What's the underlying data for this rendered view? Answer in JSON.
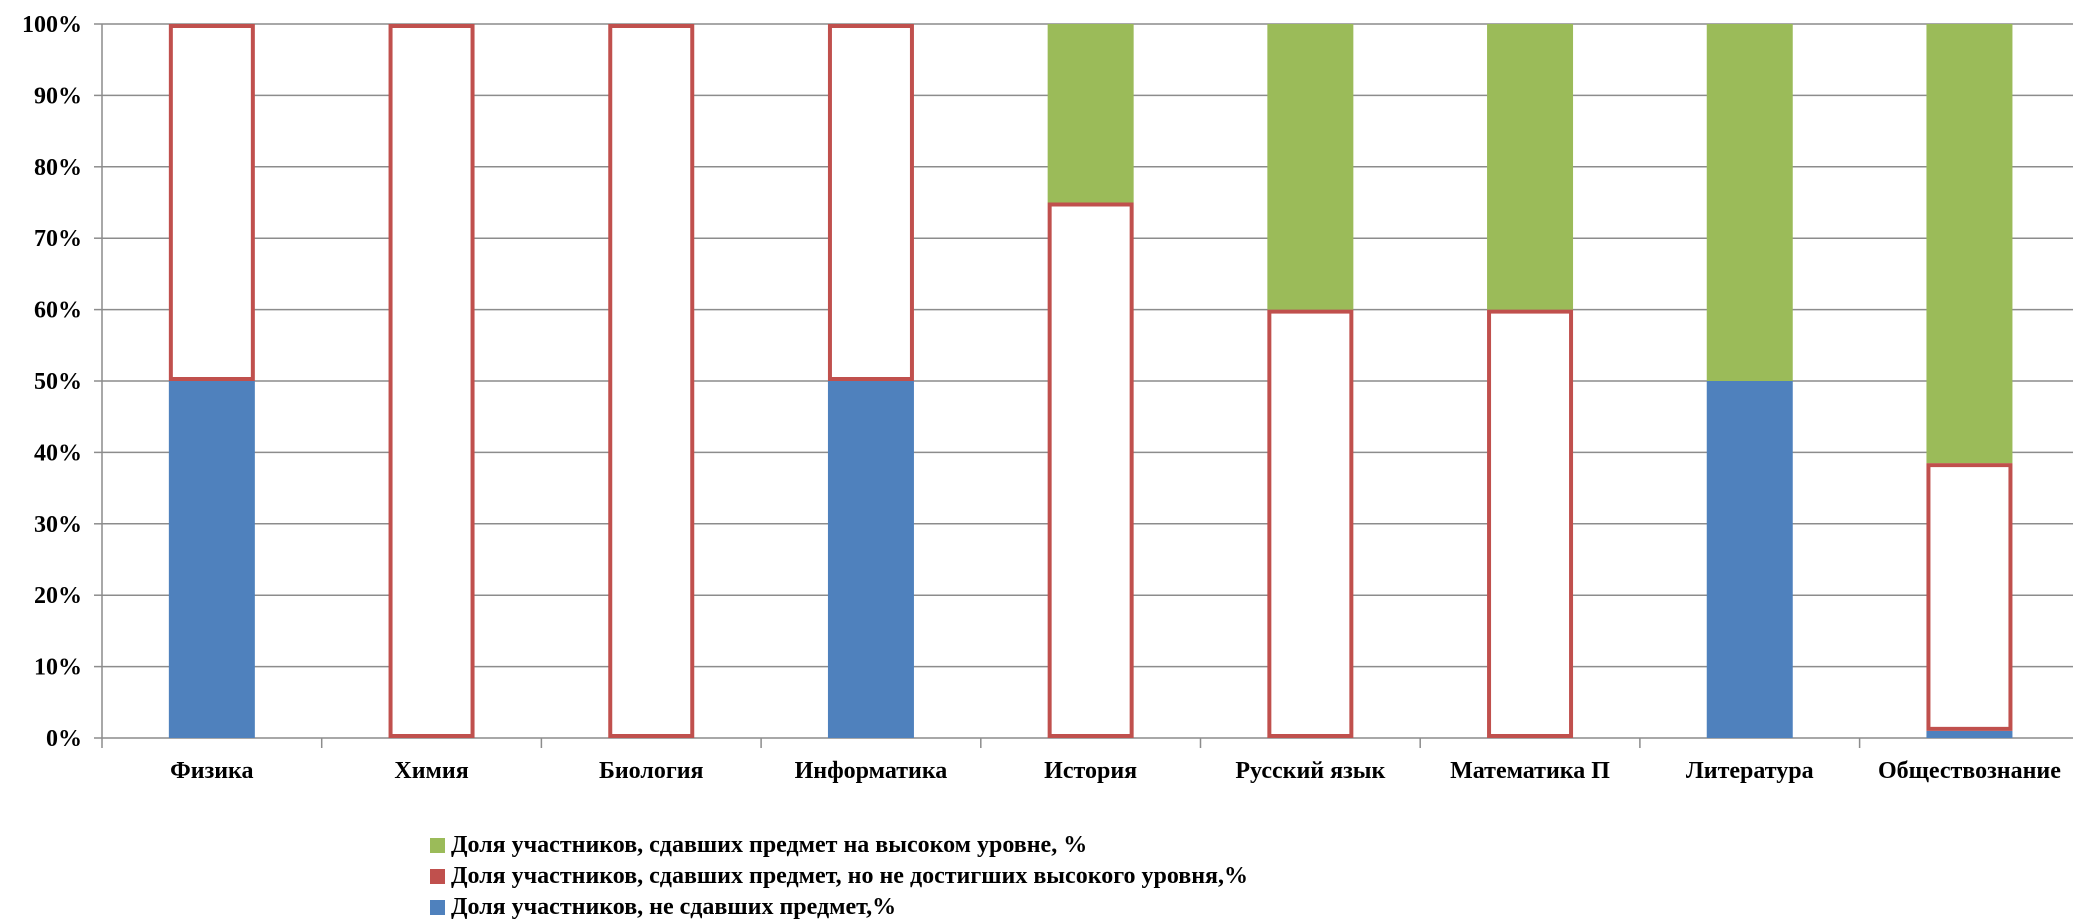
{
  "chart_data": {
    "type": "bar",
    "stacked": true,
    "stacked_percent": true,
    "categories": [
      "Физика",
      "Химия",
      "Биология",
      "Информатика",
      "История",
      "Русский язык",
      "Математика П",
      "Литература",
      "Обществознание"
    ],
    "series": [
      {
        "name": "Доля участников, не сдавших предмет,%",
        "color": "#4f81bd",
        "style": "filled",
        "values": [
          50,
          0,
          0,
          50,
          0,
          0,
          0,
          50,
          1
        ]
      },
      {
        "name": "Доля участников, сдавших предмет, но не достигших высокого уровня,%",
        "color": "#c0504d",
        "style": "outline",
        "values": [
          50,
          100,
          100,
          50,
          75,
          60,
          60,
          0,
          37.5
        ]
      },
      {
        "name": "Доля участников, сдавших предмет на высоком уровне, %",
        "color": "#9bbb59",
        "style": "filled",
        "values": [
          0,
          0,
          0,
          0,
          25,
          40,
          40,
          50,
          61.5
        ]
      }
    ],
    "yticks": [
      "0%",
      "10%",
      "20%",
      "30%",
      "40%",
      "50%",
      "60%",
      "70%",
      "80%",
      "90%",
      "100%"
    ],
    "ylim": [
      0,
      100
    ],
    "grid": true,
    "legend_position": "bottom",
    "legend_order": [
      2,
      1,
      0
    ]
  }
}
